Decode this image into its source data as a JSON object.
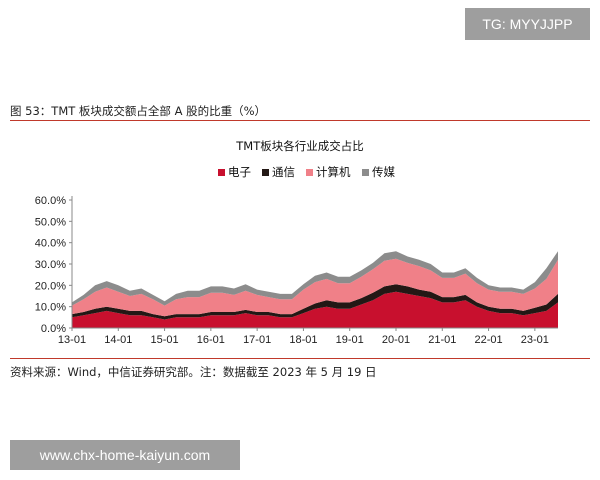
{
  "watermark_top": "TG: MYYJJPP",
  "watermark_bottom": "www.chx-home-kaiyun.com",
  "figure_title": "图 53：TMT 板块成交额占全部 A 股的比重（%）",
  "source_note": "资料来源：Wind，中信证券研究部。注：数据截至 2023 年 5 月 19 日",
  "chart_data": {
    "type": "area",
    "stacked": true,
    "title": "TMT板块各行业成交占比",
    "legend_position": "top-center",
    "grid": false,
    "ylim": [
      0,
      60
    ],
    "y_ticks": [
      "0.0%",
      "10.0%",
      "20.0%",
      "30.0%",
      "40.0%",
      "50.0%",
      "60.0%"
    ],
    "x_ticks": [
      "13-01",
      "14-01",
      "15-01",
      "16-01",
      "17-01",
      "18-01",
      "19-01",
      "20-01",
      "21-01",
      "22-01",
      "23-01"
    ],
    "x": [
      "13-01",
      "13-04",
      "13-07",
      "13-10",
      "14-01",
      "14-04",
      "14-07",
      "14-10",
      "15-01",
      "15-04",
      "15-07",
      "15-10",
      "16-01",
      "16-04",
      "16-07",
      "16-10",
      "17-01",
      "17-04",
      "17-07",
      "17-10",
      "18-01",
      "18-04",
      "18-07",
      "18-10",
      "19-01",
      "19-04",
      "19-07",
      "19-10",
      "20-01",
      "20-04",
      "20-07",
      "20-10",
      "21-01",
      "21-04",
      "21-07",
      "21-10",
      "22-01",
      "22-04",
      "22-07",
      "22-10",
      "23-01",
      "23-04",
      "23-05"
    ],
    "series": [
      {
        "name": "电子",
        "color": "#c8102e",
        "values": [
          5,
          6,
          7,
          8,
          7,
          6,
          6,
          5,
          4,
          5,
          5,
          5,
          6,
          6,
          6,
          7,
          6,
          6,
          5,
          5,
          7,
          9,
          10,
          9,
          9,
          11,
          13,
          16,
          17,
          16,
          15,
          14,
          12,
          12,
          13,
          10,
          8,
          7,
          7,
          6,
          7,
          8,
          12
        ]
      },
      {
        "name": "通信",
        "color": "#231815",
        "values": [
          1.5,
          1.5,
          2,
          2,
          2,
          2,
          2,
          1.5,
          1.5,
          1.5,
          1.5,
          1.5,
          1.5,
          1.5,
          1.5,
          1.5,
          1.5,
          1.5,
          1.5,
          1.5,
          2,
          2.5,
          3,
          3,
          3,
          3,
          3.5,
          3.5,
          3.5,
          3.5,
          3,
          3,
          2.5,
          2.5,
          2.5,
          2,
          2,
          2,
          2,
          2,
          2.5,
          3,
          4
        ]
      },
      {
        "name": "计算机",
        "color": "#f08088",
        "values": [
          4,
          6,
          8,
          9,
          8,
          7,
          8,
          7,
          5,
          7,
          8,
          8,
          9,
          9,
          8,
          9,
          8,
          7,
          7,
          7,
          9,
          10,
          10,
          9,
          9,
          10,
          11,
          12,
          12,
          11,
          11,
          10,
          9,
          9,
          10,
          9,
          8,
          8,
          8,
          8,
          9,
          12,
          16
        ]
      },
      {
        "name": "传媒",
        "color": "#8c8c8c",
        "values": [
          1.5,
          2,
          3,
          3,
          3,
          2.5,
          2.5,
          2,
          2,
          2.5,
          3,
          3,
          3,
          3,
          3,
          3,
          2.5,
          2.5,
          2.5,
          2.5,
          2.5,
          3,
          3,
          3,
          3,
          3,
          3,
          3.5,
          3.5,
          3,
          3,
          3,
          2.5,
          2.5,
          2.5,
          2.5,
          2,
          2,
          2,
          2,
          3,
          5,
          4
        ]
      }
    ]
  }
}
